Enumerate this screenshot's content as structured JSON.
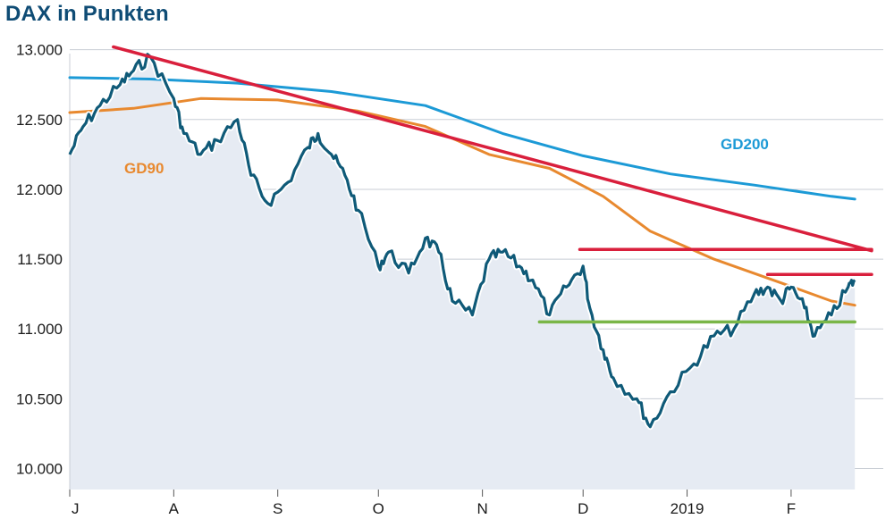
{
  "chart_data": {
    "type": "line",
    "title": "DAX in Punkten",
    "y_ticks": [
      "13.000",
      "12.500",
      "12.000",
      "11.500",
      "11.000",
      "10.500",
      "10.000"
    ],
    "x_tick_labels": [
      "J",
      "A",
      "S",
      "O",
      "N",
      "D",
      "2019",
      "F"
    ],
    "ylim": [
      9850,
      13100
    ],
    "grid": "horizontal",
    "colors": {
      "dax": "#0f5a78",
      "dax_halo": "#ffffff",
      "area": "#e6ebf3",
      "gd90": "#e8892f",
      "gd200": "#1c9ad6",
      "trend": "#d91f3c",
      "resistance": "#d91f3c",
      "support": "#7ab648",
      "grid": "#c8cdd5",
      "title": "#0f4c75"
    },
    "series": [
      {
        "name": "DAX",
        "dates": [
          "2018-07-01",
          "2018-07-05",
          "2018-07-10",
          "2018-07-16",
          "2018-07-20",
          "2018-07-25",
          "2018-08-01",
          "2018-08-04",
          "2018-08-09",
          "2018-08-14",
          "2018-08-20",
          "2018-08-24",
          "2018-08-29",
          "2018-09-04",
          "2018-09-10",
          "2018-09-13",
          "2018-09-17",
          "2018-09-21",
          "2018-09-25",
          "2018-10-01",
          "2018-10-04",
          "2018-10-10",
          "2018-10-15",
          "2018-10-19",
          "2018-10-23",
          "2018-10-29",
          "2018-11-03",
          "2018-11-07",
          "2018-11-12",
          "2018-11-16",
          "2018-11-21",
          "2018-11-26",
          "2018-12-01",
          "2018-12-03",
          "2018-12-07",
          "2018-12-10",
          "2018-12-17",
          "2018-12-21",
          "2018-12-27",
          "2019-01-03",
          "2019-01-09",
          "2019-01-15",
          "2019-01-21",
          "2019-01-25",
          "2019-01-29",
          "2019-02-01",
          "2019-02-05",
          "2019-02-08",
          "2019-02-13",
          "2019-02-18",
          "2019-02-20"
        ],
        "values": [
          12250,
          12450,
          12600,
          12750,
          12850,
          12950,
          12650,
          12400,
          12250,
          12350,
          12500,
          12100,
          11900,
          12050,
          12300,
          12400,
          12250,
          12100,
          11850,
          11450,
          11550,
          11400,
          11650,
          11550,
          11200,
          11100,
          11500,
          11550,
          11450,
          11350,
          11100,
          11300,
          11450,
          11150,
          10850,
          10650,
          10500,
          10300,
          10550,
          10750,
          10950,
          11000,
          11250,
          11300,
          11200,
          11300,
          11150,
          10950,
          11100,
          11300,
          11350
        ]
      },
      {
        "name": "GD90",
        "dates": [
          "2018-07-01",
          "2018-07-20",
          "2018-08-09",
          "2018-09-01",
          "2018-09-25",
          "2018-10-15",
          "2018-11-03",
          "2018-11-21",
          "2018-12-07",
          "2018-12-21",
          "2019-01-09",
          "2019-01-29",
          "2019-02-13",
          "2019-02-20"
        ],
        "values": [
          12550,
          12580,
          12650,
          12640,
          12560,
          12450,
          12250,
          12150,
          11950,
          11700,
          11500,
          11330,
          11200,
          11170
        ]
      },
      {
        "name": "GD200",
        "dates": [
          "2018-07-01",
          "2018-07-25",
          "2018-08-20",
          "2018-09-17",
          "2018-10-15",
          "2018-11-07",
          "2018-12-01",
          "2018-12-27",
          "2019-01-21",
          "2019-02-13",
          "2019-02-20"
        ],
        "values": [
          12800,
          12790,
          12760,
          12700,
          12600,
          12400,
          12240,
          12110,
          12030,
          11950,
          11930
        ]
      },
      {
        "name": "Trendlinie",
        "dates": [
          "2018-07-14",
          "2019-02-25"
        ],
        "values": [
          13020,
          11560
        ]
      },
      {
        "name": "Widerstand 1",
        "dates": [
          "2018-11-30",
          "2019-02-25"
        ],
        "values": [
          11570,
          11570
        ]
      },
      {
        "name": "Widerstand 2",
        "dates": [
          "2019-01-25",
          "2019-02-25"
        ],
        "values": [
          11390,
          11390
        ]
      },
      {
        "name": "Unterstützung",
        "dates": [
          "2018-11-18",
          "2019-02-20"
        ],
        "values": [
          11050,
          11050
        ]
      }
    ],
    "annotations": [
      {
        "text": "GD200",
        "color": "#1c9ad6"
      },
      {
        "text": "GD90",
        "color": "#e8892f"
      }
    ]
  }
}
